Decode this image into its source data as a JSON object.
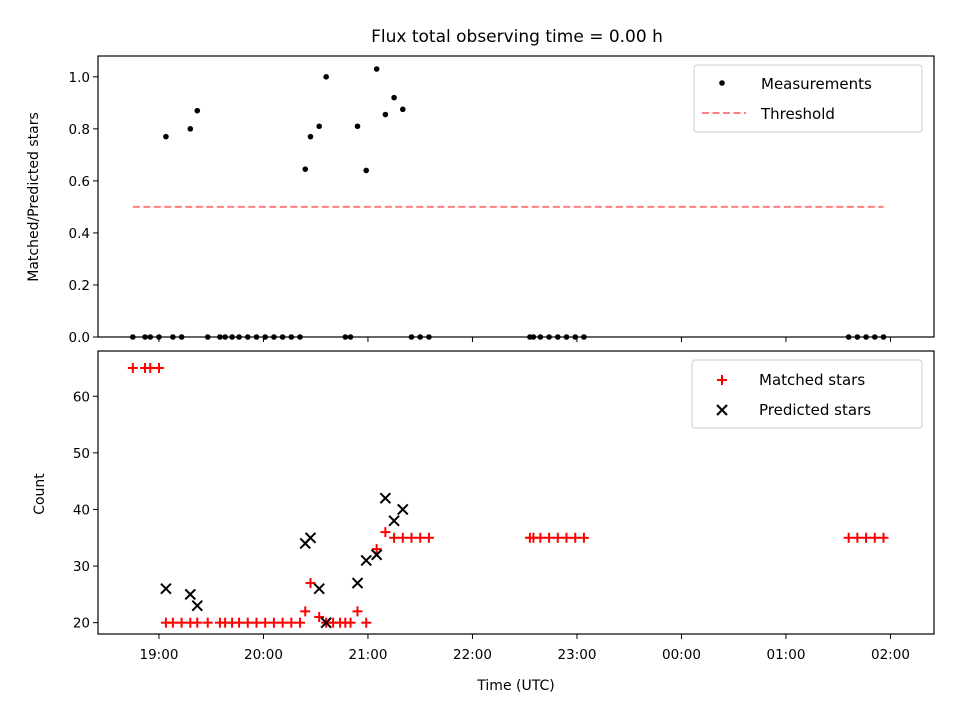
{
  "chart_data": [
    {
      "type": "scatter",
      "panel": "top",
      "title": "Flux total observing time = 0.00 h",
      "xlabel": "",
      "ylabel": "Matched/Predicted stars",
      "xlim": [
        "18:25",
        "02:25"
      ],
      "ylim": [
        0,
        1.08
      ],
      "legend_position": "top-right",
      "yticks": [
        0.0,
        0.2,
        0.4,
        0.6,
        0.8,
        1.0
      ],
      "ytick_labels": [
        "0.0",
        "0.2",
        "0.4",
        "0.6",
        "0.8",
        "1.0"
      ],
      "grid": false,
      "series": [
        {
          "name": "Measurements",
          "marker": "dot",
          "color": "#000000",
          "points": [
            {
              "x": "18:45",
              "y": 0.0
            },
            {
              "x": "18:52",
              "y": 0.0
            },
            {
              "x": "18:55",
              "y": 0.0
            },
            {
              "x": "19:00",
              "y": 0.0
            },
            {
              "x": "19:04",
              "y": 0.77
            },
            {
              "x": "19:08",
              "y": 0.0
            },
            {
              "x": "19:13",
              "y": 0.0
            },
            {
              "x": "19:18",
              "y": 0.8
            },
            {
              "x": "19:22",
              "y": 0.87
            },
            {
              "x": "19:28",
              "y": 0.0
            },
            {
              "x": "19:35",
              "y": 0.0
            },
            {
              "x": "19:38",
              "y": 0.0
            },
            {
              "x": "19:42",
              "y": 0.0
            },
            {
              "x": "19:46",
              "y": 0.0
            },
            {
              "x": "19:51",
              "y": 0.0
            },
            {
              "x": "19:56",
              "y": 0.0
            },
            {
              "x": "20:01",
              "y": 0.0
            },
            {
              "x": "20:06",
              "y": 0.0
            },
            {
              "x": "20:11",
              "y": 0.0
            },
            {
              "x": "20:16",
              "y": 0.0
            },
            {
              "x": "20:21",
              "y": 0.0
            },
            {
              "x": "20:24",
              "y": 0.645
            },
            {
              "x": "20:27",
              "y": 0.77
            },
            {
              "x": "20:32",
              "y": 0.81
            },
            {
              "x": "20:36",
              "y": 1.0
            },
            {
              "x": "20:47",
              "y": 0.0
            },
            {
              "x": "20:50",
              "y": 0.0
            },
            {
              "x": "20:54",
              "y": 0.81
            },
            {
              "x": "20:59",
              "y": 0.64
            },
            {
              "x": "21:05",
              "y": 1.03
            },
            {
              "x": "21:10",
              "y": 0.855
            },
            {
              "x": "21:15",
              "y": 0.92
            },
            {
              "x": "21:20",
              "y": 0.875
            },
            {
              "x": "21:25",
              "y": 0.0
            },
            {
              "x": "21:30",
              "y": 0.0
            },
            {
              "x": "21:35",
              "y": 0.0
            },
            {
              "x": "22:33",
              "y": 0.0
            },
            {
              "x": "22:35",
              "y": 0.0
            },
            {
              "x": "22:39",
              "y": 0.0
            },
            {
              "x": "22:44",
              "y": 0.0
            },
            {
              "x": "22:49",
              "y": 0.0
            },
            {
              "x": "22:54",
              "y": 0.0
            },
            {
              "x": "22:59",
              "y": 0.0
            },
            {
              "x": "23:04",
              "y": 0.0
            },
            {
              "x": "01:36",
              "y": 0.0
            },
            {
              "x": "01:41",
              "y": 0.0
            },
            {
              "x": "01:46",
              "y": 0.0
            },
            {
              "x": "01:51",
              "y": 0.0
            },
            {
              "x": "01:56",
              "y": 0.0
            }
          ]
        },
        {
          "name": "Threshold",
          "style": "dashed-line",
          "color": "#ff7f7f",
          "points": [
            {
              "x": "18:45",
              "y": 0.5
            },
            {
              "x": "01:56",
              "y": 0.5
            }
          ]
        }
      ]
    },
    {
      "type": "scatter",
      "panel": "bottom",
      "title": "",
      "xlabel": "Time (UTC)",
      "ylabel": "Count",
      "xlim": [
        "18:25",
        "02:25"
      ],
      "ylim": [
        18,
        68
      ],
      "legend_position": "top-right",
      "yticks": [
        20,
        30,
        40,
        50,
        60
      ],
      "ytick_labels": [
        "20",
        "30",
        "40",
        "50",
        "60"
      ],
      "xticks": [
        "19:00",
        "20:00",
        "21:00",
        "22:00",
        "23:00",
        "00:00",
        "01:00",
        "02:00"
      ],
      "xtick_labels": [
        "19:00",
        "20:00",
        "21:00",
        "22:00",
        "23:00",
        "00:00",
        "01:00",
        "02:00"
      ],
      "grid": false,
      "series": [
        {
          "name": "Matched stars",
          "marker": "plus",
          "color": "#ff0000",
          "points": [
            {
              "x": "18:45",
              "y": 65
            },
            {
              "x": "18:52",
              "y": 65
            },
            {
              "x": "18:55",
              "y": 65
            },
            {
              "x": "19:00",
              "y": 65
            },
            {
              "x": "19:04",
              "y": 20
            },
            {
              "x": "19:08",
              "y": 20
            },
            {
              "x": "19:13",
              "y": 20
            },
            {
              "x": "19:18",
              "y": 20
            },
            {
              "x": "19:22",
              "y": 20
            },
            {
              "x": "19:28",
              "y": 20
            },
            {
              "x": "19:35",
              "y": 20
            },
            {
              "x": "19:38",
              "y": 20
            },
            {
              "x": "19:42",
              "y": 20
            },
            {
              "x": "19:46",
              "y": 20
            },
            {
              "x": "19:51",
              "y": 20
            },
            {
              "x": "19:56",
              "y": 20
            },
            {
              "x": "20:01",
              "y": 20
            },
            {
              "x": "20:06",
              "y": 20
            },
            {
              "x": "20:11",
              "y": 20
            },
            {
              "x": "20:16",
              "y": 20
            },
            {
              "x": "20:21",
              "y": 20
            },
            {
              "x": "20:24",
              "y": 22
            },
            {
              "x": "20:27",
              "y": 27
            },
            {
              "x": "20:32",
              "y": 21
            },
            {
              "x": "20:36",
              "y": 20
            },
            {
              "x": "20:40",
              "y": 20
            },
            {
              "x": "20:44",
              "y": 20
            },
            {
              "x": "20:47",
              "y": 20
            },
            {
              "x": "20:50",
              "y": 20
            },
            {
              "x": "20:54",
              "y": 22
            },
            {
              "x": "20:59",
              "y": 20
            },
            {
              "x": "21:05",
              "y": 33
            },
            {
              "x": "21:10",
              "y": 36
            },
            {
              "x": "21:15",
              "y": 35
            },
            {
              "x": "21:20",
              "y": 35
            },
            {
              "x": "21:25",
              "y": 35
            },
            {
              "x": "21:30",
              "y": 35
            },
            {
              "x": "21:35",
              "y": 35
            },
            {
              "x": "22:33",
              "y": 35
            },
            {
              "x": "22:35",
              "y": 35
            },
            {
              "x": "22:39",
              "y": 35
            },
            {
              "x": "22:44",
              "y": 35
            },
            {
              "x": "22:49",
              "y": 35
            },
            {
              "x": "22:54",
              "y": 35
            },
            {
              "x": "22:59",
              "y": 35
            },
            {
              "x": "23:04",
              "y": 35
            },
            {
              "x": "01:36",
              "y": 35
            },
            {
              "x": "01:41",
              "y": 35
            },
            {
              "x": "01:46",
              "y": 35
            },
            {
              "x": "01:51",
              "y": 35
            },
            {
              "x": "01:56",
              "y": 35
            }
          ]
        },
        {
          "name": "Predicted stars",
          "marker": "x",
          "color": "#000000",
          "points": [
            {
              "x": "19:04",
              "y": 26
            },
            {
              "x": "19:18",
              "y": 25
            },
            {
              "x": "19:22",
              "y": 23
            },
            {
              "x": "20:24",
              "y": 34
            },
            {
              "x": "20:27",
              "y": 35
            },
            {
              "x": "20:32",
              "y": 26
            },
            {
              "x": "20:36",
              "y": 20
            },
            {
              "x": "20:54",
              "y": 27
            },
            {
              "x": "20:59",
              "y": 31
            },
            {
              "x": "21:05",
              "y": 32
            },
            {
              "x": "21:10",
              "y": 42
            },
            {
              "x": "21:15",
              "y": 38
            },
            {
              "x": "21:20",
              "y": 40
            }
          ]
        }
      ]
    }
  ]
}
